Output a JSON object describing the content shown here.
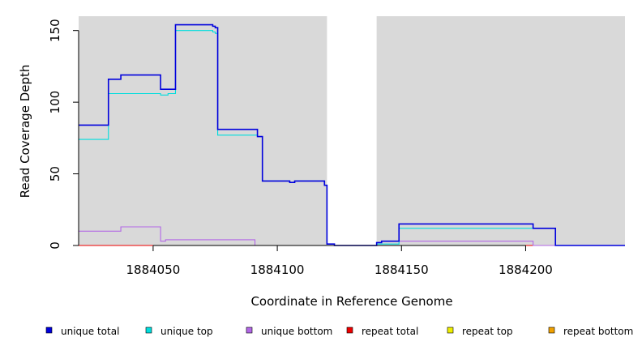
{
  "chart_data": {
    "type": "line",
    "xlabel": "Coordinate in Reference Genome",
    "ylabel": "Read Coverage Depth",
    "xlim": [
      1884020,
      1884240
    ],
    "ylim": [
      0,
      160
    ],
    "x_ticks": [
      1884050,
      1884100,
      1884150,
      1884200
    ],
    "x_tick_labels": [
      "1884050",
      "1884100",
      "1884150",
      "1884200"
    ],
    "y_ticks": [
      0,
      50,
      100,
      150
    ],
    "y_tick_labels": [
      "0",
      "50",
      "100",
      "150"
    ],
    "shaded_regions": [
      [
        1884020,
        1884120
      ],
      [
        1884140,
        1884240
      ]
    ],
    "plot_background": "#d9d9d9",
    "legend_position": "bottom",
    "series": [
      {
        "name": "unique total",
        "color": "#0000dd",
        "points": [
          [
            1884020,
            84
          ],
          [
            1884032,
            84
          ],
          [
            1884032,
            116
          ],
          [
            1884037,
            116
          ],
          [
            1884037,
            119
          ],
          [
            1884053,
            119
          ],
          [
            1884053,
            109
          ],
          [
            1884059,
            109
          ],
          [
            1884059,
            154
          ],
          [
            1884074,
            154
          ],
          [
            1884074,
            153
          ],
          [
            1884075,
            153
          ],
          [
            1884075,
            152
          ],
          [
            1884076,
            152
          ],
          [
            1884076,
            81
          ],
          [
            1884092,
            81
          ],
          [
            1884092,
            76
          ],
          [
            1884094,
            76
          ],
          [
            1884094,
            45
          ],
          [
            1884105,
            45
          ],
          [
            1884105,
            44
          ],
          [
            1884107,
            44
          ],
          [
            1884107,
            45
          ],
          [
            1884119,
            45
          ],
          [
            1884119,
            42
          ],
          [
            1884120,
            42
          ],
          [
            1884120,
            1
          ],
          [
            1884123,
            1
          ],
          [
            1884123,
            0
          ],
          [
            1884140,
            0
          ],
          [
            1884140,
            2
          ],
          [
            1884142,
            2
          ],
          [
            1884142,
            3
          ],
          [
            1884149,
            3
          ],
          [
            1884149,
            15
          ],
          [
            1884203,
            15
          ],
          [
            1884203,
            12
          ],
          [
            1884212,
            12
          ],
          [
            1884212,
            0
          ],
          [
            1884240,
            0
          ]
        ]
      },
      {
        "name": "unique top",
        "color": "#00dddd",
        "points": [
          [
            1884020,
            74
          ],
          [
            1884032,
            74
          ],
          [
            1884032,
            106
          ],
          [
            1884053,
            106
          ],
          [
            1884053,
            105
          ],
          [
            1884056,
            105
          ],
          [
            1884056,
            106
          ],
          [
            1884059,
            106
          ],
          [
            1884059,
            150
          ],
          [
            1884074,
            150
          ],
          [
            1884074,
            149
          ],
          [
            1884075,
            149
          ],
          [
            1884075,
            148
          ],
          [
            1884076,
            148
          ],
          [
            1884076,
            77
          ],
          [
            1884092,
            77
          ],
          [
            1884092,
            76
          ],
          [
            1884094,
            76
          ],
          [
            1884094,
            45
          ],
          [
            1884105,
            45
          ],
          [
            1884105,
            44
          ],
          [
            1884107,
            44
          ],
          [
            1884107,
            45
          ],
          [
            1884119,
            45
          ],
          [
            1884119,
            42
          ],
          [
            1884120,
            42
          ],
          [
            1884120,
            1
          ],
          [
            1884123,
            1
          ],
          [
            1884123,
            0
          ],
          [
            1884140,
            0
          ],
          [
            1884140,
            1
          ],
          [
            1884149,
            1
          ],
          [
            1884149,
            12
          ],
          [
            1884212,
            12
          ],
          [
            1884212,
            0
          ],
          [
            1884240,
            0
          ]
        ]
      },
      {
        "name": "unique bottom",
        "color": "#b266e6",
        "points": [
          [
            1884020,
            10
          ],
          [
            1884037,
            10
          ],
          [
            1884037,
            13
          ],
          [
            1884053,
            13
          ],
          [
            1884053,
            3
          ],
          [
            1884055,
            3
          ],
          [
            1884055,
            4
          ],
          [
            1884091,
            4
          ],
          [
            1884091,
            0
          ],
          [
            1884140,
            0
          ],
          [
            1884140,
            2
          ],
          [
            1884142,
            2
          ],
          [
            1884142,
            3
          ],
          [
            1884203,
            3
          ],
          [
            1884203,
            0
          ],
          [
            1884240,
            0
          ]
        ]
      },
      {
        "name": "repeat total",
        "color": "#ee0000",
        "points": [
          [
            1884020,
            0
          ],
          [
            1884240,
            0
          ]
        ]
      },
      {
        "name": "repeat top",
        "color": "#eeee00",
        "points": [
          [
            1884020,
            0
          ],
          [
            1884240,
            0
          ]
        ]
      },
      {
        "name": "repeat bottom",
        "color": "#f0a000",
        "points": [
          [
            1884020,
            0
          ],
          [
            1884240,
            0
          ]
        ]
      }
    ]
  }
}
